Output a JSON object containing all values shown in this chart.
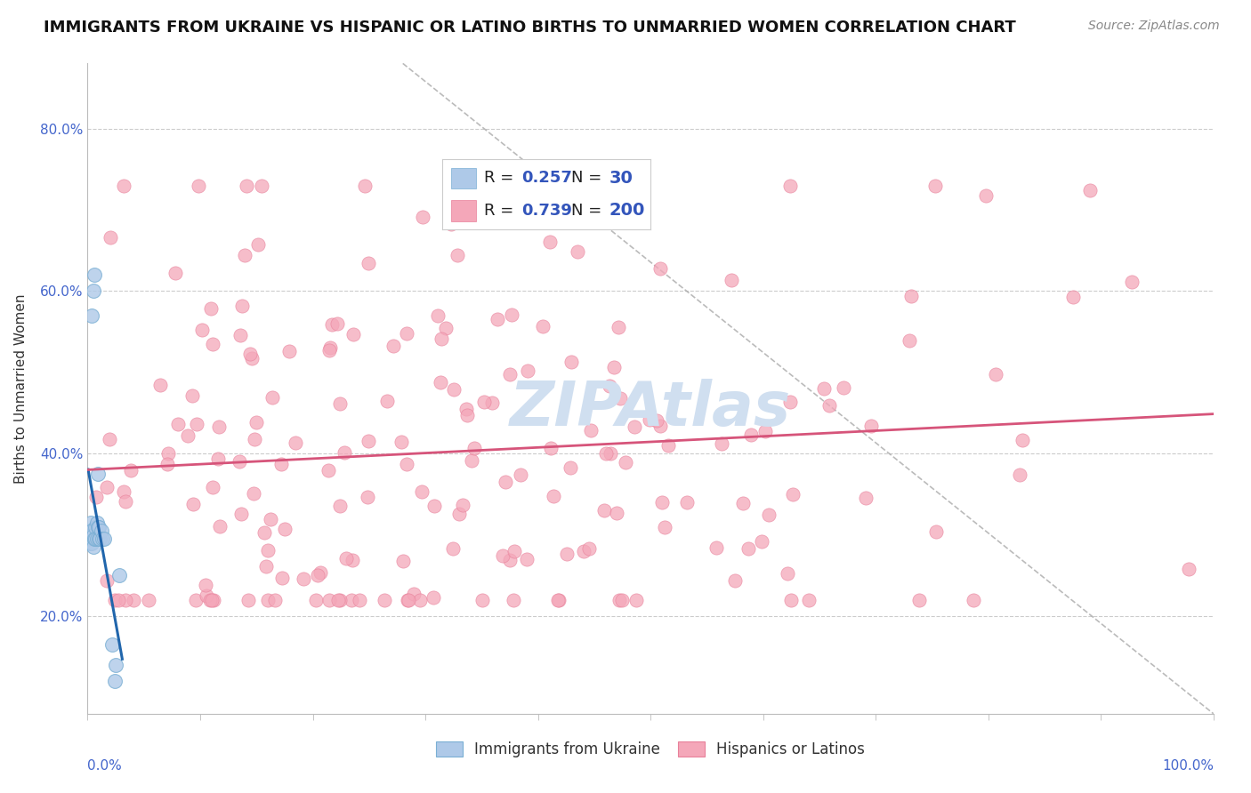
{
  "title": "IMMIGRANTS FROM UKRAINE VS HISPANIC OR LATINO BIRTHS TO UNMARRIED WOMEN CORRELATION CHART",
  "source": "Source: ZipAtlas.com",
  "ylabel": "Births to Unmarried Women",
  "ytick_vals": [
    0.2,
    0.4,
    0.6,
    0.8
  ],
  "ytick_labels": [
    "20.0%",
    "40.0%",
    "60.0%",
    "80.0%"
  ],
  "blue_color": "#aec9e8",
  "pink_color": "#f4a7b9",
  "blue_line_color": "#2166ac",
  "pink_line_color": "#d6547a",
  "blue_edge_color": "#7aafd4",
  "pink_edge_color": "#e8809a",
  "bg_color": "#ffffff",
  "grid_color": "#cccccc",
  "axis_color": "#bbbbbb",
  "text_color": "#333333",
  "label_color": "#4466cc",
  "watermark_color": "#d0dff0",
  "title_fontsize": 13,
  "source_fontsize": 10,
  "tick_fontsize": 11,
  "ylabel_fontsize": 11
}
